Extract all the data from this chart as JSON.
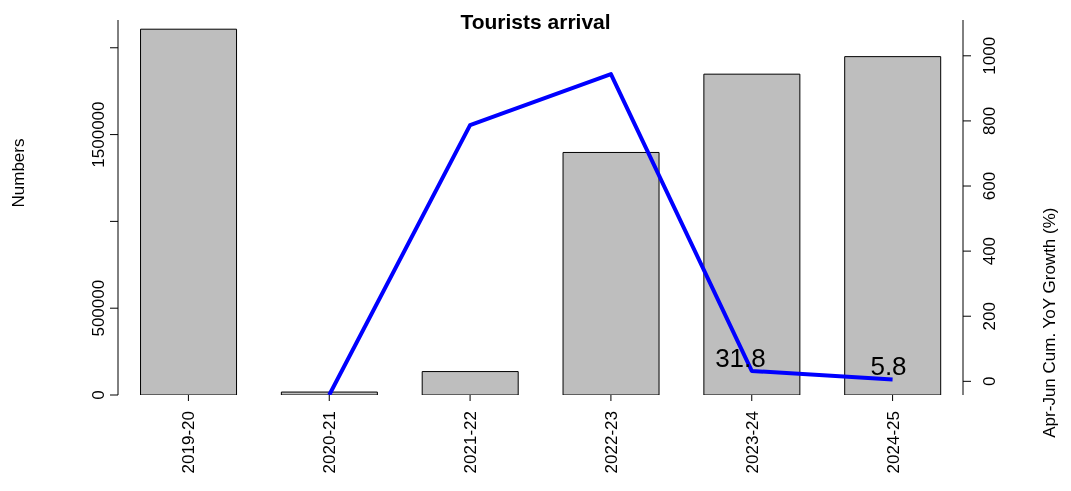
{
  "chart_data": {
    "type": "bar",
    "title": "Tourists arrival",
    "ylabel": "Numbers",
    "y2label": "Apr-Jun Cum. YoY Growth (%)",
    "categories": [
      "2019-20",
      "2020-21",
      "2021-22",
      "2022-23",
      "2023-24",
      "2024-25"
    ],
    "series": [
      {
        "color": "#bebebe",
        "values": [
          2107000,
          17000,
          135000,
          1397000,
          1848000,
          1949000
        ]
      },
      {
        "type": "line",
        "axis": "y2",
        "color": "#0000ff",
        "values": [
          null,
          -42,
          787,
          944,
          31.8,
          5.8
        ],
        "value_labels": [
          null,
          null,
          null,
          null,
          "31.8",
          "5.8"
        ]
      }
    ],
    "ylim": [
      0,
      2160000
    ],
    "yticks": [
      0,
      500000,
      {
        "value": 1000000,
        "label": null
      },
      1500000,
      {
        "value": 2000000,
        "label": null
      }
    ],
    "y2lim": [
      -42,
      1110
    ],
    "y2ticks": [
      0,
      200,
      400,
      600,
      800,
      1000
    ],
    "grid": false,
    "legend": false,
    "marker": "none",
    "line_style": "solid"
  }
}
